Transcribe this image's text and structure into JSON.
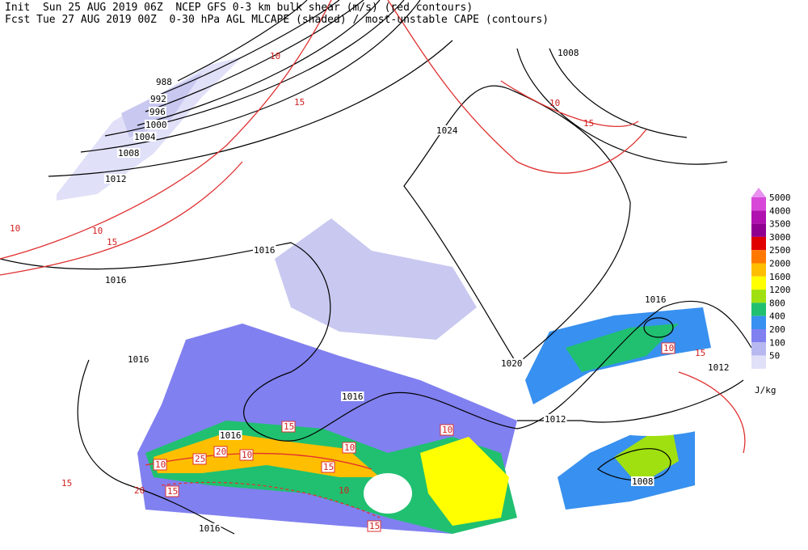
{
  "header": {
    "line1": "Init  Sun 25 AUG 2019 06Z  NCEP GFS 0-3 km bulk shear (m/s) (red contours)",
    "line2": "Fcst Tue 27 AUG 2019 00Z  0-30 hPa AGL MLCAPE (shaded) / most-unstable CAPE (contours)"
  },
  "isobar_labels": [
    "988",
    "992",
    "996",
    "1000",
    "1004",
    "1008",
    "1012",
    "1016",
    "1016",
    "1016",
    "1016",
    "1016",
    "1016",
    "1020",
    "1024",
    "1008",
    "1016",
    "1012",
    "1012",
    "1008"
  ],
  "shear_labels": [
    "10",
    "15",
    "10",
    "10",
    "25",
    "20",
    "10",
    "15",
    "15",
    "10",
    "15"
  ],
  "shear_plain_labels": [
    "10",
    "15",
    "10",
    "15",
    "10",
    "15",
    "20",
    "15",
    "10",
    "15",
    "10"
  ],
  "colorbar": {
    "units": "J/kg",
    "top_color": "#e890f0",
    "levels": [
      {
        "label": 5000,
        "color": "#d848d8"
      },
      {
        "label": 4000,
        "color": "#b010b0"
      },
      {
        "label": 3500,
        "color": "#900090"
      },
      {
        "label": 3000,
        "color": "#e00000"
      },
      {
        "label": 2500,
        "color": "#ff7800"
      },
      {
        "label": 2000,
        "color": "#ffbe00"
      },
      {
        "label": 1600,
        "color": "#ffff00"
      },
      {
        "label": 1200,
        "color": "#a0e010"
      },
      {
        "label": 800,
        "color": "#20c070"
      },
      {
        "label": 400,
        "color": "#3890f0"
      },
      {
        "label": 200,
        "color": "#8080f0"
      },
      {
        "label": 100,
        "color": "#b8b8f0"
      },
      {
        "label": 50,
        "color": "#e0e0f8"
      }
    ]
  }
}
